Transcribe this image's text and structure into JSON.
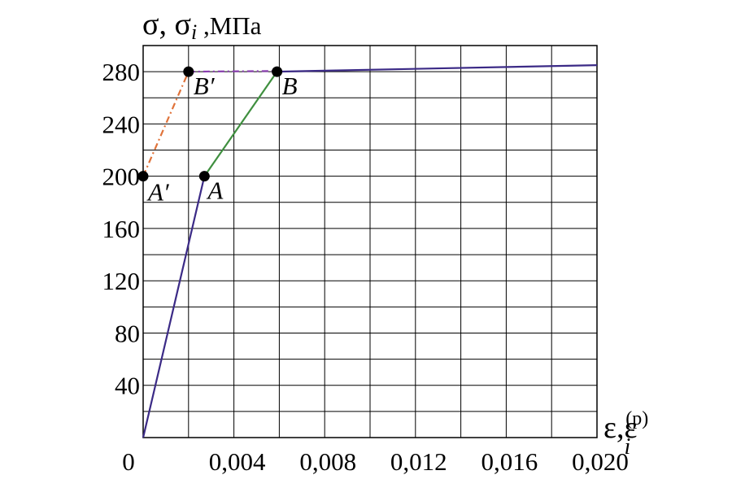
{
  "chart_data": {
    "type": "line",
    "ylabel": {
      "sym1": "σ",
      "sep1": ", ",
      "sym2": "σ",
      "sub2": "i",
      "sep2": " ,",
      "unit": "МПа"
    },
    "xlabel": {
      "sym1": "ε",
      "sep1": ",",
      "sym2": "ε",
      "sub2": "i",
      "sup2": "(p)"
    },
    "xlim": [
      0,
      0.02
    ],
    "ylim": [
      0,
      300
    ],
    "grid": true,
    "x_ticks": [
      {
        "value": 0,
        "label": "0"
      },
      {
        "value": 0.004,
        "label": "0,004"
      },
      {
        "value": 0.008,
        "label": "0,008"
      },
      {
        "value": 0.012,
        "label": "0,012"
      },
      {
        "value": 0.016,
        "label": "0,016"
      },
      {
        "value": 0.02,
        "label": "0,020"
      }
    ],
    "y_ticks": [
      {
        "value": 40,
        "label": "40"
      },
      {
        "value": 80,
        "label": "80"
      },
      {
        "value": 120,
        "label": "120"
      },
      {
        "value": 160,
        "label": "160"
      },
      {
        "value": 200,
        "label": "200"
      },
      {
        "value": 240,
        "label": "240"
      },
      {
        "value": 280,
        "label": "280"
      }
    ],
    "series": [
      {
        "style": "solid",
        "color": "#3b2a86",
        "points": [
          [
            0,
            0
          ],
          [
            0.0027,
            200
          ]
        ]
      },
      {
        "style": "solid",
        "color": "#3f8f3f",
        "points": [
          [
            0.0027,
            200
          ],
          [
            0.0059,
            280
          ]
        ]
      },
      {
        "style": "solid",
        "color": "#3b2a86",
        "points": [
          [
            0.0059,
            280
          ],
          [
            0.02,
            285
          ]
        ]
      },
      {
        "style": "dashdot",
        "color": "#e0733a",
        "points": [
          [
            0,
            200
          ],
          [
            0.002,
            280
          ]
        ]
      },
      {
        "style": "dashdot",
        "color": "#8a3fb0",
        "points": [
          [
            0.002,
            280
          ],
          [
            0.0059,
            280.5
          ]
        ]
      }
    ],
    "points": [
      {
        "label": "A",
        "x": 0.0027,
        "y": 200
      },
      {
        "label": "B",
        "x": 0.0059,
        "y": 280
      },
      {
        "label": "A′",
        "x": 0,
        "y": 200
      },
      {
        "label": "B′",
        "x": 0.002,
        "y": 280
      }
    ]
  }
}
